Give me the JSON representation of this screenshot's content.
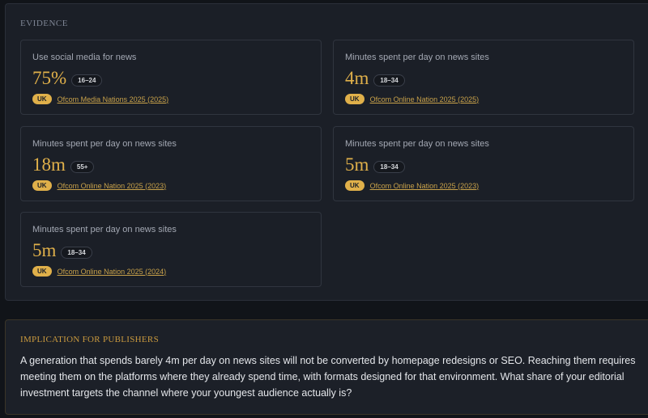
{
  "evidence": {
    "title": "EVIDENCE",
    "cards": [
      {
        "label": "Use social media for news",
        "value": "75%",
        "age": "16–24",
        "region": "UK",
        "source": "Ofcom Media Nations 2025 (2025)"
      },
      {
        "label": "Minutes spent per day on news sites",
        "value": "4m",
        "age": "18–34",
        "region": "UK",
        "source": "Ofcom Online Nation 2025 (2025)"
      },
      {
        "label": "Minutes spent per day on news sites",
        "value": "18m",
        "age": "55+",
        "region": "UK",
        "source": "Ofcom Online Nation 2025 (2023)"
      },
      {
        "label": "Minutes spent per day on news sites",
        "value": "5m",
        "age": "18–34",
        "region": "UK",
        "source": "Ofcom Online Nation 2025 (2023)"
      },
      {
        "label": "Minutes spent per day on news sites",
        "value": "5m",
        "age": "18–34",
        "region": "UK",
        "source": "Ofcom Online Nation 2025 (2024)"
      }
    ]
  },
  "implication": {
    "title": "IMPLICATION FOR PUBLISHERS",
    "body": "A generation that spends barely 4m per day on news sites will not be converted by homepage redesigns or SEO. Reaching them requires meeting them on the platforms where they already spend time, with formats designed for that environment. What share of your editorial investment targets the channel where your youngest audience actually is?"
  },
  "colors": {
    "accent": "#e0b04a",
    "panel": "#1b1f27",
    "background": "#111419"
  }
}
